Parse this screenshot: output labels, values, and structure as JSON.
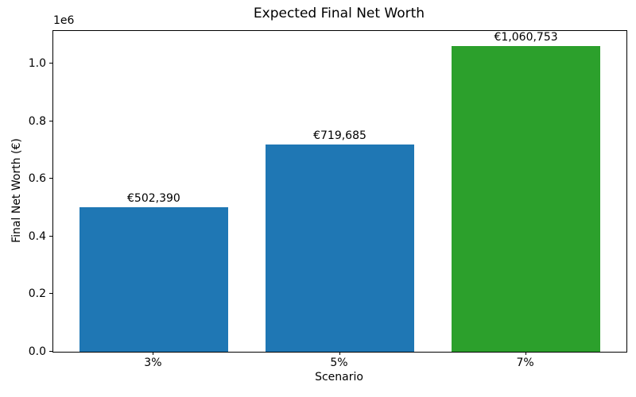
{
  "figure": {
    "background": "#ffffff",
    "text_color": "#000000"
  },
  "chart_data": {
    "type": "bar",
    "title": "Expected Final Net Worth",
    "xlabel": "Scenario",
    "ylabel": "Final Net Worth (€)",
    "categories": [
      "3%",
      "5%",
      "7%"
    ],
    "values": [
      502390,
      719685,
      1060753
    ],
    "bar_labels": [
      "€502,390",
      "€719,685",
      "€1,060,753"
    ],
    "bar_colors": [
      "#1f77b4",
      "#1f77b4",
      "#2ca02c"
    ],
    "bar_width": 0.8,
    "xlim": [
      -0.54,
      2.54
    ],
    "ylim": [
      0,
      1113790
    ],
    "y_ticks": [
      0,
      200000,
      400000,
      600000,
      800000,
      1000000
    ],
    "y_tick_labels": [
      "0.0",
      "0.2",
      "0.4",
      "0.6",
      "0.8",
      "1.0"
    ],
    "y_offset_label": "1e6",
    "grid": false,
    "legend": null
  }
}
